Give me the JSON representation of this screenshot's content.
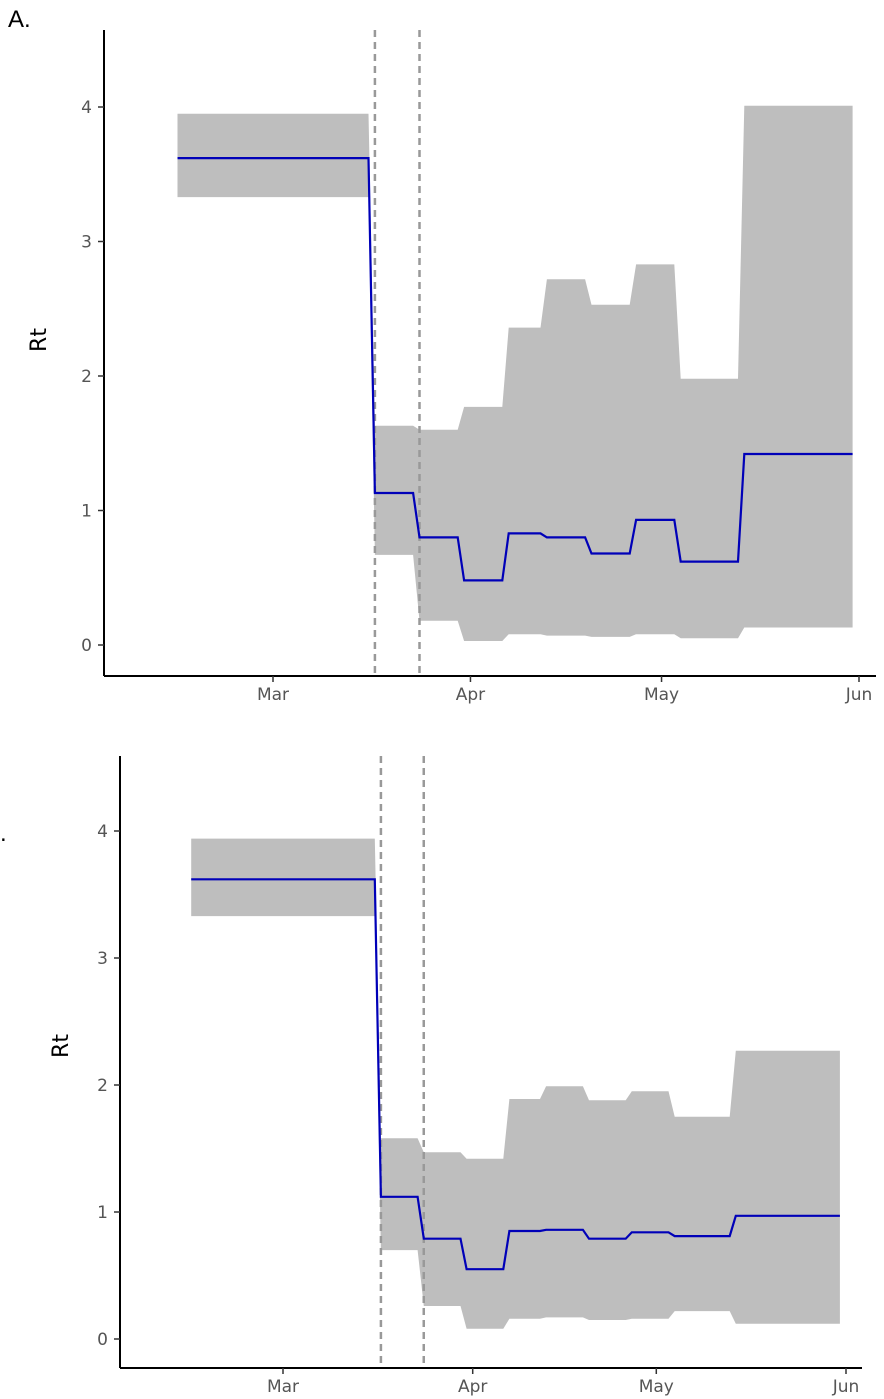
{
  "panel_labels": [
    "A.",
    "."
  ],
  "chart_data": [
    {
      "type": "line",
      "title": "",
      "xlabel": "",
      "ylabel": "Rt",
      "x_ticks": [
        "Mar",
        "Apr",
        "May",
        "Jun"
      ],
      "y_ticks": [
        "0",
        "1",
        "2",
        "3",
        "4"
      ],
      "ylim": [
        -0.2,
        4.6
      ],
      "xlim": [
        "2020-02-20",
        "2020-06-01"
      ],
      "vlines": [
        "2020-03-17",
        "2020-03-24"
      ],
      "colors": {
        "line": "#0000b8",
        "band": "#bebebe",
        "vline": "#999999"
      },
      "series": [
        {
          "x": [
            "2020-02-15",
            "2020-03-16",
            "2020-03-17",
            "2020-03-23",
            "2020-03-24",
            "2020-03-30",
            "2020-03-31",
            "2020-04-06",
            "2020-04-07",
            "2020-04-12",
            "2020-04-13",
            "2020-04-19",
            "2020-04-20",
            "2020-04-26",
            "2020-04-27",
            "2020-05-03",
            "2020-05-04",
            "2020-05-13",
            "2020-05-14",
            "2020-05-31"
          ],
          "values": [
            3.62,
            3.62,
            1.13,
            1.13,
            0.8,
            0.8,
            0.48,
            0.48,
            0.83,
            0.83,
            0.8,
            0.8,
            0.68,
            0.68,
            0.93,
            0.93,
            0.62,
            0.62,
            1.42,
            1.42
          ],
          "lower": [
            3.33,
            3.33,
            0.67,
            0.67,
            0.18,
            0.18,
            0.03,
            0.03,
            0.08,
            0.08,
            0.07,
            0.07,
            0.06,
            0.06,
            0.08,
            0.08,
            0.05,
            0.05,
            0.13,
            0.13
          ],
          "upper": [
            3.95,
            3.95,
            1.63,
            1.63,
            1.6,
            1.6,
            1.77,
            1.77,
            2.36,
            2.36,
            2.72,
            2.72,
            2.53,
            2.53,
            2.83,
            2.83,
            1.98,
            1.98,
            4.01,
            4.01
          ]
        }
      ]
    },
    {
      "type": "line",
      "title": "",
      "xlabel": "",
      "ylabel": "Rt",
      "x_ticks": [
        "Mar",
        "Apr",
        "May",
        "Jun"
      ],
      "y_ticks": [
        "0",
        "1",
        "2",
        "3",
        "4"
      ],
      "ylim": [
        -0.2,
        4.6
      ],
      "xlim": [
        "2020-02-15",
        "2020-06-02"
      ],
      "vlines": [
        "2020-03-17",
        "2020-03-24"
      ],
      "colors": {
        "line": "#0000b8",
        "band": "#bebebe",
        "vline": "#999999"
      },
      "series": [
        {
          "x": [
            "2020-02-15",
            "2020-03-16",
            "2020-03-17",
            "2020-03-23",
            "2020-03-24",
            "2020-03-30",
            "2020-03-31",
            "2020-04-06",
            "2020-04-07",
            "2020-04-12",
            "2020-04-13",
            "2020-04-19",
            "2020-04-20",
            "2020-04-26",
            "2020-04-27",
            "2020-05-03",
            "2020-05-04",
            "2020-05-13",
            "2020-05-14",
            "2020-05-31"
          ],
          "values": [
            3.62,
            3.62,
            1.12,
            1.12,
            0.79,
            0.79,
            0.55,
            0.55,
            0.85,
            0.85,
            0.86,
            0.86,
            0.79,
            0.79,
            0.84,
            0.84,
            0.81,
            0.81,
            0.97,
            0.97
          ],
          "lower": [
            3.33,
            3.33,
            0.7,
            0.7,
            0.26,
            0.26,
            0.08,
            0.08,
            0.16,
            0.16,
            0.17,
            0.17,
            0.15,
            0.15,
            0.16,
            0.16,
            0.22,
            0.22,
            0.12,
            0.12
          ],
          "upper": [
            3.94,
            3.94,
            1.58,
            1.58,
            1.47,
            1.47,
            1.42,
            1.42,
            1.89,
            1.89,
            1.99,
            1.99,
            1.88,
            1.88,
            1.95,
            1.95,
            1.75,
            1.75,
            2.27,
            2.27
          ]
        }
      ]
    }
  ]
}
